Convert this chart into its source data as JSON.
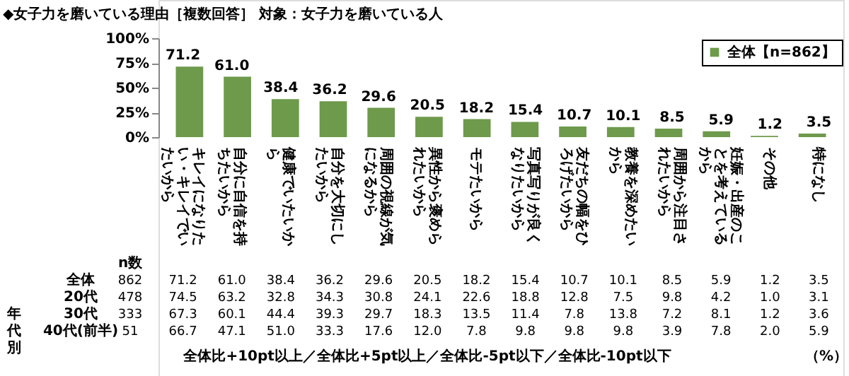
{
  "chart_data": {
    "type": "bar",
    "title": "◆女子力を磨いている理由［複数回答］ 対象：女子力を磨いている人",
    "categories": [
      "キレイになりたい・キレイでいたいから",
      "自分に自信を持ちたいから",
      "健康でいたいから",
      "自分を大切にしたいから",
      "周囲の視線が気になるから",
      "異性から褒められたいから",
      "モテたいから",
      "写真写りが良くなりたいから",
      "友だちの幅をひろげたいから",
      "教養を深めたいから",
      "周囲から注目されたいから",
      "妊娠・出産のことを考えているから",
      "その他",
      "特になし"
    ],
    "series": [
      {
        "name": "全体【n=862】",
        "color": "#6e9a4b",
        "values": [
          71.2,
          61.0,
          38.4,
          36.2,
          29.6,
          20.5,
          18.2,
          15.4,
          10.7,
          10.1,
          8.5,
          5.9,
          1.2,
          3.5
        ],
        "value_labels": [
          "71.2",
          "61.0",
          "38.4",
          "36.2",
          "29.6",
          "20.5",
          "18.2",
          "15.4",
          "10.7",
          "10.1",
          "8.5",
          "5.9",
          "1.2",
          "3.5"
        ]
      }
    ],
    "ylim": [
      0,
      100
    ],
    "yticks": [
      {
        "value": 0,
        "label": "0%"
      },
      {
        "value": 25,
        "label": "25%"
      },
      {
        "value": 50,
        "label": "50%"
      },
      {
        "value": 75,
        "label": "75%"
      },
      {
        "value": 100,
        "label": "100%"
      }
    ],
    "legend": "top right",
    "annotations": [
      "n数",
      "全体",
      "862",
      "71.2",
      "61.0",
      "38.4",
      "36.2",
      "29.6",
      "20.5",
      "18.2",
      "15.4",
      "10.7",
      "10.1",
      "8.5",
      "5.9",
      "1.2",
      "3.5",
      "20代",
      "478",
      "74.5",
      "63.2",
      "32.8",
      "34.3",
      "30.8",
      "24.1",
      "22.6",
      "18.8",
      "12.8",
      "7.5",
      "9.8",
      "4.2",
      "1.0",
      "3.1",
      "30代",
      "333",
      "67.3",
      "60.1",
      "44.4",
      "39.3",
      "29.7",
      "18.3",
      "13.5",
      "11.4",
      "7.8",
      "13.8",
      "7.2",
      "8.1",
      "1.2",
      "3.6",
      "40代(前半)",
      "51",
      "66.7",
      "47.1",
      "51.0",
      "33.3",
      "17.6",
      "12.0",
      "7.8",
      "9.8",
      "9.8",
      "9.8",
      "3.9",
      "7.8",
      "2.0",
      "5.9",
      "年代別",
      "全体比+10pt以上／全体比+5pt以上／全体比-5pt以下／全体比-10pt以下",
      "（%）"
    ]
  }
}
